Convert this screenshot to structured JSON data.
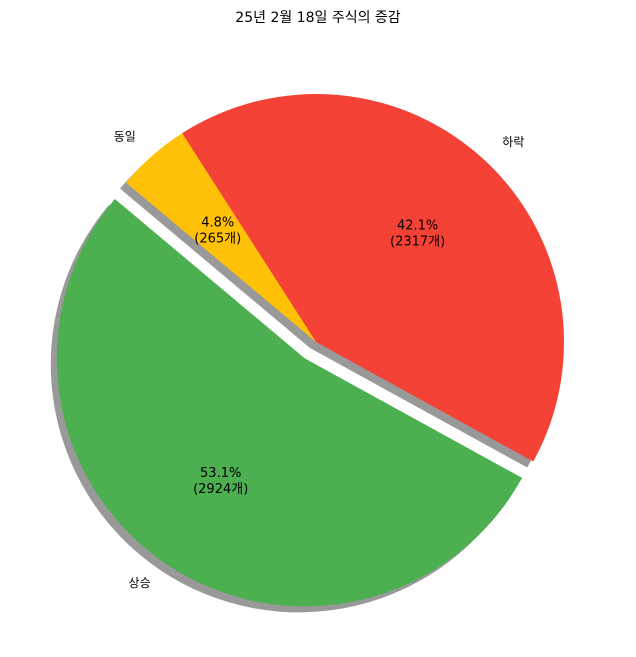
{
  "chart_data": {
    "type": "pie",
    "title": "25년 2월 18일 주식의 증감",
    "categories": [
      "상승",
      "하락",
      "동일"
    ],
    "values": [
      2924,
      2317,
      265
    ],
    "value_labels": [
      "53.1%\n(2924개)",
      "42.1%\n(2317개)",
      "4.8%\n(265개)"
    ],
    "colors": [
      "#4caf50",
      "#f44336",
      "#ffc107"
    ],
    "shadow": true
  }
}
